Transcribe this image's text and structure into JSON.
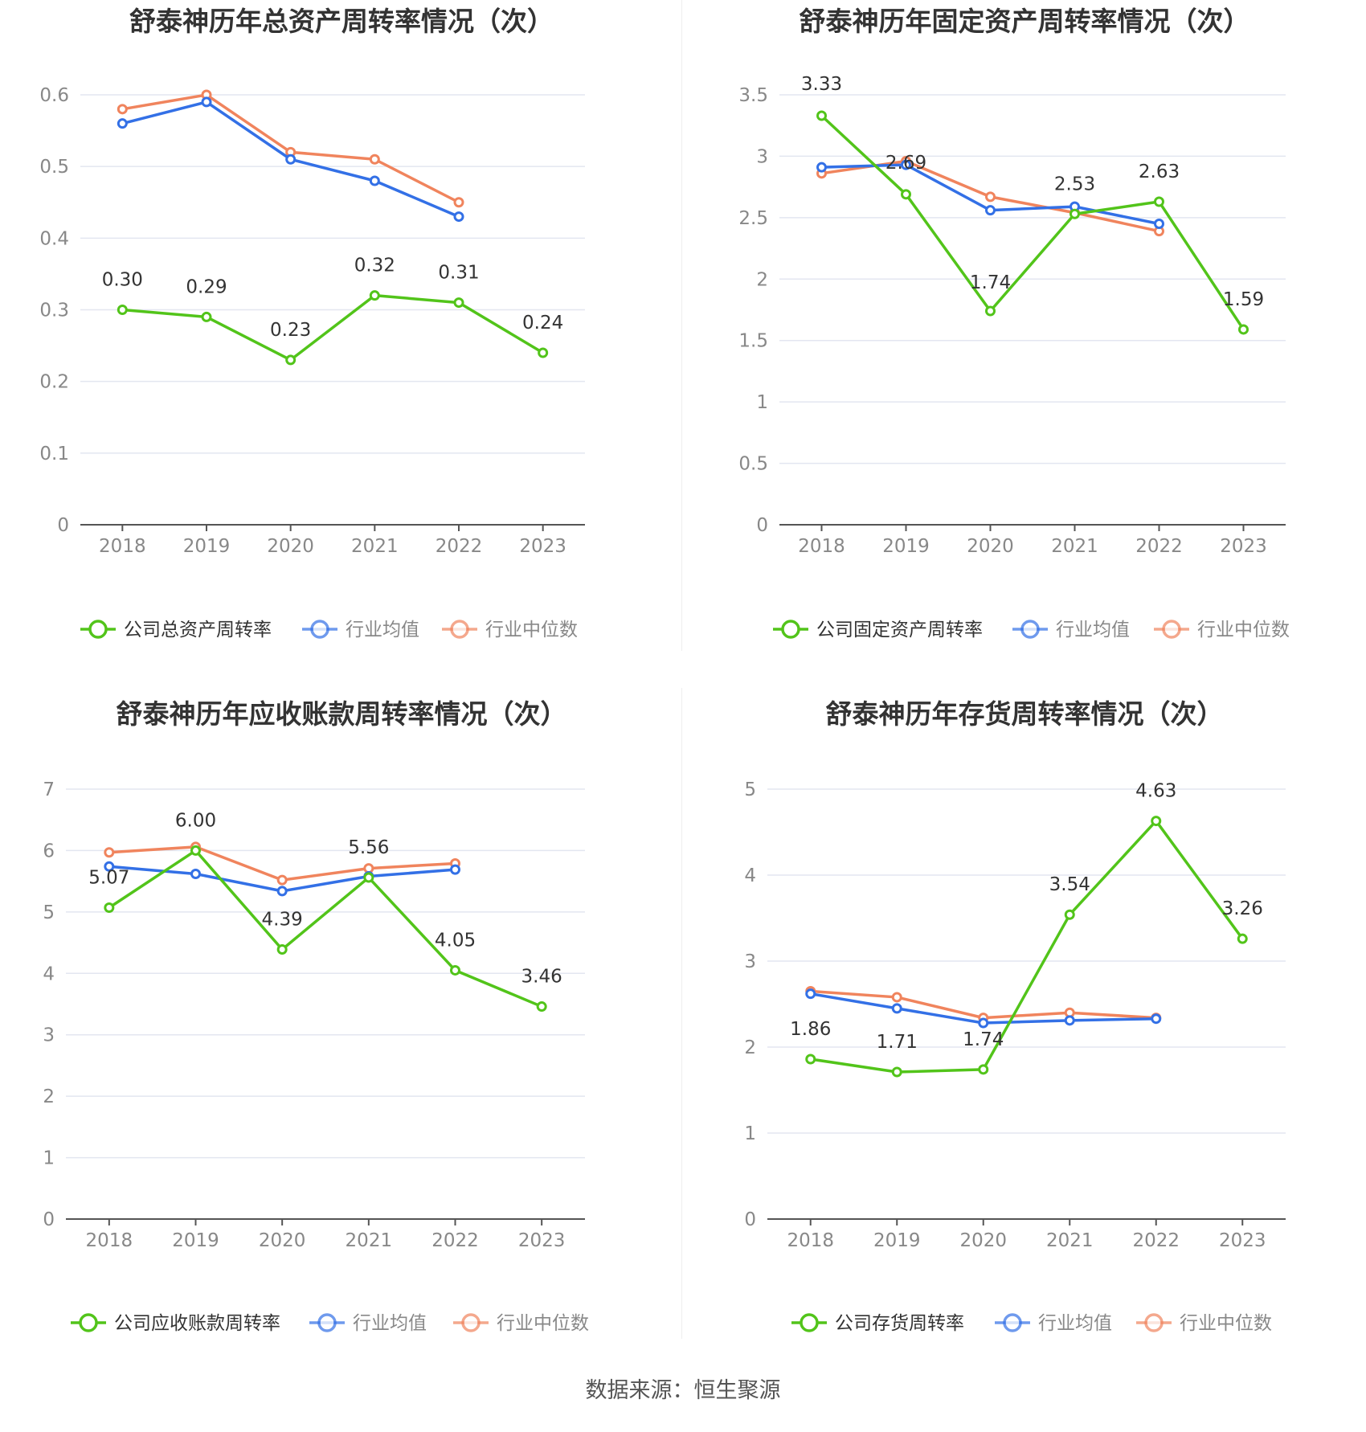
{
  "colors": {
    "company": "#52c41a",
    "average": "#3370e6",
    "median": "#f0845d",
    "grid": "#e3e6f0",
    "axis": "#555555",
    "tick_text": "#888888",
    "title": "#333333"
  },
  "legend_labels": {
    "average": "行业均值",
    "median": "行业中位数"
  },
  "source": "数据来源：恒生聚源",
  "chart_data": [
    {
      "type": "line",
      "title": "舒泰神历年总资产周转率情况（次）",
      "categories": [
        "2018",
        "2019",
        "2020",
        "2021",
        "2022",
        "2023"
      ],
      "ylim": [
        0,
        0.6
      ],
      "yticks": [
        "0",
        "0.1",
        "0.2",
        "0.3",
        "0.4",
        "0.5",
        "0.6"
      ],
      "grid": true,
      "legend_position": "bottom",
      "series": [
        {
          "key": "company",
          "name": "公司总资产周转率",
          "values": [
            0.3,
            0.29,
            0.23,
            0.32,
            0.31,
            0.24
          ],
          "labels": [
            "0.30",
            "0.29",
            "0.23",
            "0.32",
            "0.31",
            "0.24"
          ]
        },
        {
          "key": "average",
          "name": "行业均值",
          "values": [
            0.56,
            0.59,
            0.51,
            0.48,
            0.43,
            null
          ]
        },
        {
          "key": "median",
          "name": "行业中位数",
          "values": [
            0.58,
            0.6,
            0.52,
            0.51,
            0.45,
            null
          ]
        }
      ]
    },
    {
      "type": "line",
      "title": "舒泰神历年固定资产周转率情况（次）",
      "categories": [
        "2018",
        "2019",
        "2020",
        "2021",
        "2022",
        "2023"
      ],
      "ylim": [
        0,
        3.5
      ],
      "yticks": [
        "0",
        "0.5",
        "1",
        "1.5",
        "2",
        "2.5",
        "3",
        "3.5"
      ],
      "grid": true,
      "legend_position": "bottom",
      "series": [
        {
          "key": "company",
          "name": "公司固定资产周转率",
          "values": [
            3.33,
            2.69,
            1.74,
            2.53,
            2.63,
            1.59
          ],
          "labels": [
            "3.33",
            "2.69",
            "1.74",
            "2.53",
            "2.63",
            "1.59"
          ]
        },
        {
          "key": "average",
          "name": "行业均值",
          "values": [
            2.91,
            2.93,
            2.56,
            2.59,
            2.45,
            null
          ]
        },
        {
          "key": "median",
          "name": "行业中位数",
          "values": [
            2.86,
            2.96,
            2.67,
            2.54,
            2.39,
            null
          ]
        }
      ]
    },
    {
      "type": "line",
      "title": "舒泰神历年应收账款周转率情况（次）",
      "categories": [
        "2018",
        "2019",
        "2020",
        "2021",
        "2022",
        "2023"
      ],
      "ylim": [
        0,
        7
      ],
      "yticks": [
        "0",
        "1",
        "2",
        "3",
        "4",
        "5",
        "6",
        "7"
      ],
      "grid": true,
      "legend_position": "bottom",
      "series": [
        {
          "key": "company",
          "name": "公司应收账款周转率",
          "values": [
            5.07,
            6.0,
            4.39,
            5.56,
            4.05,
            3.46
          ],
          "labels": [
            "5.07",
            "6.00",
            "4.39",
            "5.56",
            "4.05",
            "3.46"
          ]
        },
        {
          "key": "average",
          "name": "行业均值",
          "values": [
            5.74,
            5.62,
            5.34,
            5.58,
            5.69,
            null
          ]
        },
        {
          "key": "median",
          "name": "行业中位数",
          "values": [
            5.97,
            6.06,
            5.52,
            5.71,
            5.79,
            null
          ]
        }
      ]
    },
    {
      "type": "line",
      "title": "舒泰神历年存货周转率情况（次）",
      "categories": [
        "2018",
        "2019",
        "2020",
        "2021",
        "2022",
        "2023"
      ],
      "ylim": [
        0,
        5
      ],
      "yticks": [
        "0",
        "1",
        "2",
        "3",
        "4",
        "5"
      ],
      "grid": true,
      "legend_position": "bottom",
      "series": [
        {
          "key": "company",
          "name": "公司存货周转率",
          "values": [
            1.86,
            1.71,
            1.74,
            3.54,
            4.63,
            3.26
          ],
          "labels": [
            "1.86",
            "1.71",
            "1.74",
            "3.54",
            "4.63",
            "3.26"
          ]
        },
        {
          "key": "average",
          "name": "行业均值",
          "values": [
            2.62,
            2.45,
            2.28,
            2.31,
            2.33,
            null
          ]
        },
        {
          "key": "median",
          "name": "行业中位数",
          "values": [
            2.65,
            2.58,
            2.34,
            2.4,
            2.34,
            null
          ]
        }
      ]
    }
  ]
}
